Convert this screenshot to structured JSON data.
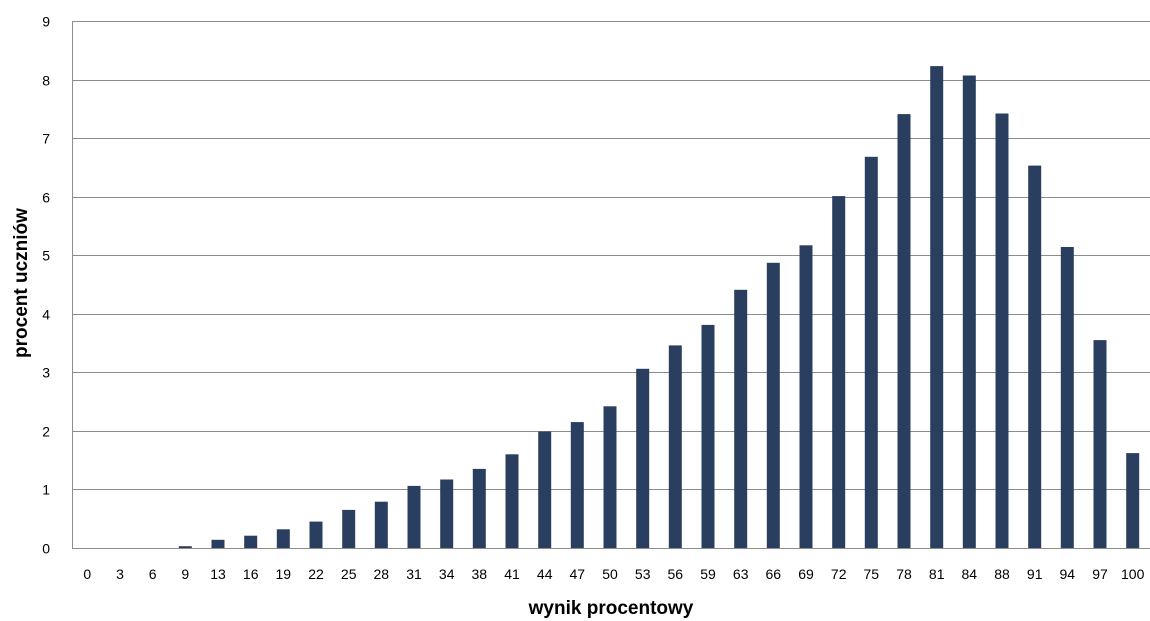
{
  "chart_data": {
    "type": "bar",
    "title": "",
    "xlabel": "wynik procentowy",
    "ylabel": "procent uczniów",
    "ylim": [
      0,
      9
    ],
    "yticks": [
      0,
      1,
      2,
      3,
      4,
      5,
      6,
      7,
      8,
      9
    ],
    "grid": true,
    "legend": "none",
    "bar_color": "#2a3f5f",
    "categories": [
      "0",
      "3",
      "6",
      "9",
      "13",
      "16",
      "19",
      "22",
      "25",
      "28",
      "31",
      "34",
      "38",
      "41",
      "44",
      "47",
      "50",
      "53",
      "56",
      "59",
      "63",
      "66",
      "69",
      "72",
      "75",
      "78",
      "81",
      "84",
      "88",
      "91",
      "94",
      "97",
      "100"
    ],
    "values": [
      0,
      0,
      0,
      0.03,
      0.14,
      0.21,
      0.32,
      0.45,
      0.65,
      0.79,
      1.06,
      1.17,
      1.35,
      1.6,
      1.99,
      2.15,
      2.42,
      3.06,
      3.46,
      3.81,
      4.41,
      4.87,
      5.17,
      6.01,
      6.68,
      7.41,
      8.23,
      8.07,
      7.42,
      6.53,
      5.14,
      3.55,
      1.62
    ]
  }
}
